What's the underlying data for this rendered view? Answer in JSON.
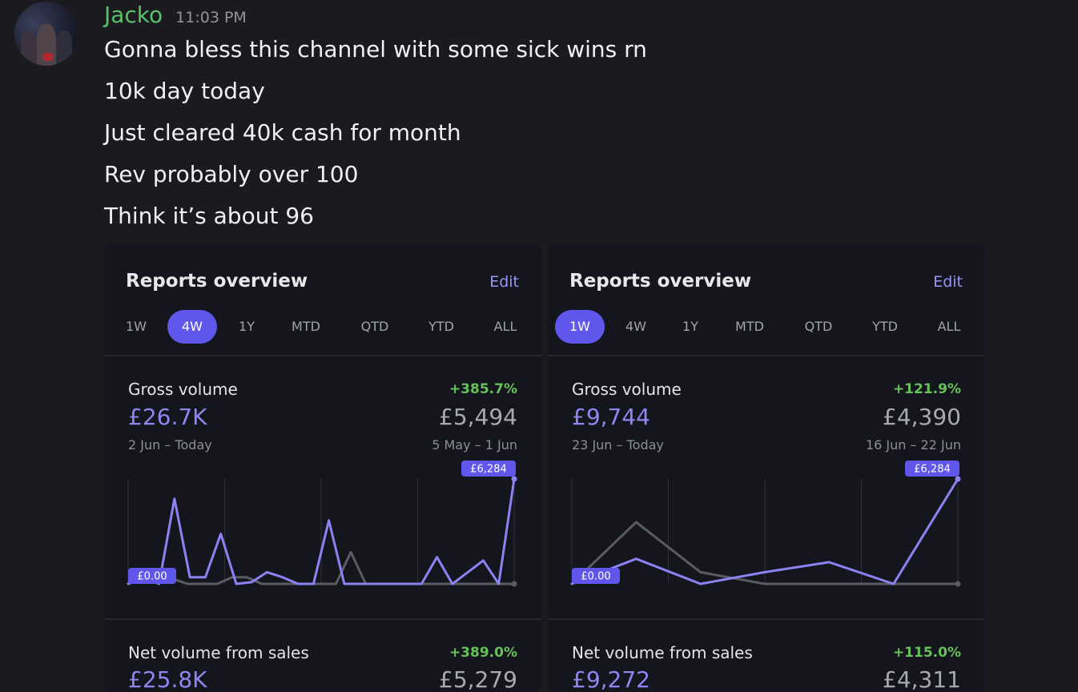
{
  "message": {
    "username": "Jacko",
    "timestamp": "11:03 PM",
    "lines": [
      "Gonna bless this channel with some sick wins rn",
      "10k day today",
      "Just cleared 40k cash for month",
      "Rev probably over 100",
      "Think it’s about 96"
    ]
  },
  "cards": [
    {
      "title": "Reports overview",
      "edit_label": "Edit",
      "ranges": [
        "1W",
        "4W",
        "1Y",
        "MTD",
        "QTD",
        "YTD",
        "ALL"
      ],
      "active_range": "4W",
      "gross": {
        "label": "Gross volume",
        "change": "+385.7%",
        "current": "£26.7K",
        "previous": "£5,494",
        "current_period": "2 Jun – Today",
        "previous_period": "5 May – 1 Jun"
      },
      "net": {
        "label": "Net volume from sales",
        "change": "+389.0%",
        "current": "£25.8K",
        "previous": "£5,279"
      }
    },
    {
      "title": "Reports overview",
      "edit_label": "Edit",
      "ranges": [
        "1W",
        "4W",
        "1Y",
        "MTD",
        "QTD",
        "YTD",
        "ALL"
      ],
      "active_range": "1W",
      "gross": {
        "label": "Gross volume",
        "change": "+121.9%",
        "current": "£9,744",
        "previous": "£4,390",
        "current_period": "23 Jun – Today",
        "previous_period": "16 Jun – 22 Jun"
      },
      "net": {
        "label": "Net volume from sales",
        "change": "+115.0%",
        "current": "£9,272",
        "previous": "£4,311"
      }
    }
  ],
  "chart_data": [
    {
      "type": "line",
      "title": "Gross volume",
      "ylim": [
        0,
        6284
      ],
      "y_max_label": "£6,284",
      "y_min_label": "£0.00",
      "grid": true,
      "colors": {
        "current": "#8c83f2",
        "previous": "#5a5b63"
      },
      "series": [
        {
          "values": [
            0,
            400,
            0,
            5100,
            400,
            400,
            3000,
            0,
            100,
            700,
            400,
            0,
            0,
            3800,
            0,
            0,
            0,
            0,
            0,
            0,
            1600,
            0,
            700,
            1400,
            0,
            6284
          ]
        },
        {
          "values": [
            0,
            300,
            600,
            300,
            0,
            0,
            0,
            400,
            400,
            0,
            0,
            0,
            0,
            0,
            0,
            1900,
            0,
            0,
            0,
            0,
            0,
            0,
            0,
            0,
            0,
            0,
            0
          ]
        }
      ]
    },
    {
      "type": "line",
      "title": "Gross volume",
      "ylim": [
        0,
        6284
      ],
      "y_max_label": "£6,284",
      "y_min_label": "£0.00",
      "grid": true,
      "colors": {
        "current": "#8c83f2",
        "previous": "#5a5b63"
      },
      "series": [
        {
          "values": [
            0,
            1500,
            0,
            700,
            1300,
            0,
            6284
          ]
        },
        {
          "values": [
            0,
            3700,
            700,
            0,
            0,
            0,
            0
          ]
        }
      ]
    }
  ]
}
